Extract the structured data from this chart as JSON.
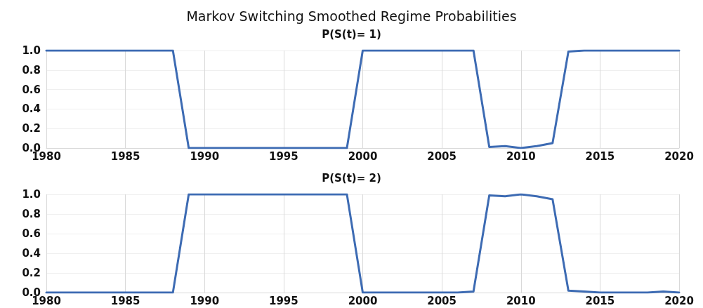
{
  "chart_data": [
    {
      "type": "line",
      "title": "Markov Switching Smoothed Regime Probabilities",
      "subtitle": "P(S(t)= 1)",
      "x": [
        1980,
        1981,
        1982,
        1983,
        1984,
        1985,
        1986,
        1987,
        1988,
        1989,
        1990,
        1991,
        1992,
        1993,
        1994,
        1995,
        1996,
        1997,
        1998,
        1999,
        2000,
        2001,
        2002,
        2003,
        2004,
        2005,
        2006,
        2007,
        2008,
        2009,
        2010,
        2011,
        2012,
        2013,
        2014,
        2015,
        2016,
        2017,
        2018,
        2019,
        2020
      ],
      "series": [
        {
          "color": "#3d6bb3",
          "values": [
            1,
            1,
            1,
            1,
            1,
            1,
            1,
            1,
            1,
            0,
            0,
            0,
            0,
            0,
            0,
            0,
            0,
            0,
            0,
            0,
            1,
            1,
            1,
            1,
            1,
            1,
            1,
            1,
            0.01,
            0.02,
            0,
            0.02,
            0.05,
            0.99,
            1,
            1,
            1,
            1,
            1,
            1,
            1
          ]
        }
      ],
      "xlim": [
        1980,
        2020
      ],
      "xticks": [
        1980,
        1985,
        1990,
        1995,
        2000,
        2005,
        2010,
        2015,
        2020
      ],
      "ylim": [
        0,
        1
      ],
      "yticks": [
        {
          "value": 0,
          "label": "0.0"
        },
        {
          "value": 0.2,
          "label": "0.2"
        },
        {
          "value": 0.4,
          "label": "0.4"
        },
        {
          "value": 0.6,
          "label": "0.6"
        },
        {
          "value": 0.8,
          "label": "0.8"
        },
        {
          "value": 1,
          "label": "1.0"
        }
      ],
      "grid": true,
      "marker": "none",
      "line_style": "solid"
    },
    {
      "type": "line",
      "title": "P(S(t)= 2)",
      "x": [
        1980,
        1981,
        1982,
        1983,
        1984,
        1985,
        1986,
        1987,
        1988,
        1989,
        1990,
        1991,
        1992,
        1993,
        1994,
        1995,
        1996,
        1997,
        1998,
        1999,
        2000,
        2001,
        2002,
        2003,
        2004,
        2005,
        2006,
        2007,
        2008,
        2009,
        2010,
        2011,
        2012,
        2013,
        2014,
        2015,
        2016,
        2017,
        2018,
        2019,
        2020
      ],
      "series": [
        {
          "color": "#3d6bb3",
          "values": [
            0,
            0,
            0,
            0,
            0,
            0,
            0,
            0,
            0,
            1,
            1,
            1,
            1,
            1,
            1,
            1,
            1,
            1,
            1,
            1,
            0,
            0,
            0,
            0,
            0,
            0,
            0,
            0.01,
            0.99,
            0.98,
            1,
            0.98,
            0.95,
            0.02,
            0.01,
            0,
            0,
            0,
            0,
            0.01,
            0
          ]
        }
      ],
      "xlim": [
        1980,
        2020
      ],
      "xticks": [
        1980,
        1985,
        1990,
        1995,
        2000,
        2005,
        2010,
        2015,
        2020
      ],
      "ylim": [
        0,
        1
      ],
      "yticks": [
        {
          "value": 0,
          "label": "0.0"
        },
        {
          "value": 0.2,
          "label": "0.2"
        },
        {
          "value": 0.4,
          "label": "0.4"
        },
        {
          "value": 0.6,
          "label": "0.6"
        },
        {
          "value": 0.8,
          "label": "0.8"
        },
        {
          "value": 1,
          "label": "1.0"
        }
      ],
      "grid": true,
      "marker": "none",
      "line_style": "solid"
    }
  ]
}
